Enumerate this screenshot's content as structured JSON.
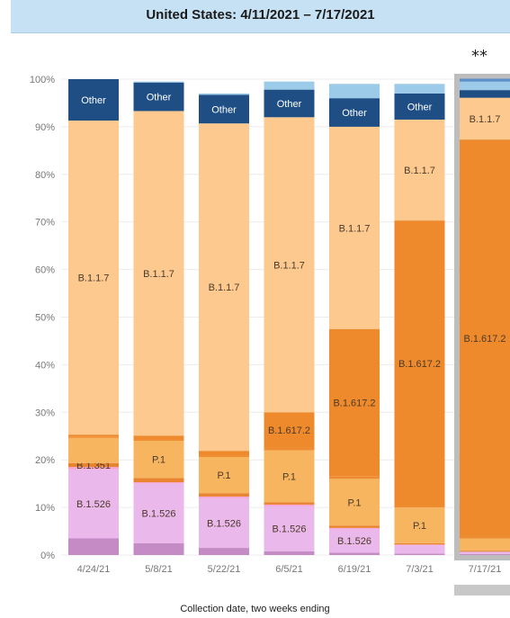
{
  "title": "United States: 4/11/2021 – 7/17/2021",
  "footnote_mark": "**",
  "chart_data": {
    "type": "bar",
    "stacked": true,
    "xlabel": "Collection date, two weeks ending",
    "ylabel": "",
    "ylim": [
      0,
      100
    ],
    "yticks": [
      "0%",
      "10%",
      "20%",
      "30%",
      "40%",
      "50%",
      "60%",
      "70%",
      "80%",
      "90%",
      "100%"
    ],
    "grid": true,
    "categories": [
      "4/24/21",
      "5/8/21",
      "5/22/21",
      "6/5/21",
      "6/19/21",
      "7/3/21",
      "7/17/21"
    ],
    "nowcast_category": "7/17/21",
    "segment_label_text": [
      "B.1.526",
      "B.1.351",
      "P.1",
      "B.1.617.2",
      "B.1.1.7",
      "Other"
    ],
    "series": [
      {
        "name": "",
        "color": "#c48bc4",
        "values": [
          3.5,
          2.5,
          1.5,
          0.8,
          0.5,
          0.3,
          0.2
        ],
        "labels": [
          "",
          "",
          "",
          "",
          "",
          "",
          ""
        ]
      },
      {
        "name": "",
        "color": "#eab8ea",
        "values": [
          14.5,
          12.5,
          10.5,
          9.5,
          5.0,
          1.8,
          0.5
        ],
        "labels": [
          "B.1.526",
          "B.1.526",
          "B.1.526",
          "B.1.526",
          "B.1.526",
          "",
          ""
        ]
      },
      {
        "name": "",
        "color": "#f4a5d3",
        "values": [
          0.5,
          0.3,
          0.3,
          0.3,
          0.2,
          0.1,
          0.0
        ],
        "labels": [
          "",
          "",
          "",
          "",
          "",
          "",
          ""
        ]
      },
      {
        "name": "",
        "color": "#e8832f",
        "values": [
          0.8,
          0.9,
          0.7,
          0.5,
          0.5,
          0.3,
          0.2
        ],
        "labels": [
          "B.1.351",
          "",
          "",
          "",
          "",
          "",
          ""
        ]
      },
      {
        "name": "",
        "color": "#f7b55f",
        "values": [
          5.3,
          7.8,
          7.6,
          10.9,
          9.8,
          7.5,
          2.6
        ],
        "labels": [
          "",
          "P.1",
          "P.1",
          "P.1",
          "P.1",
          "P.1",
          ""
        ]
      },
      {
        "name": "",
        "color": "#ef8c32",
        "values": [
          0.2,
          0.3,
          0.3,
          0.5,
          0.5,
          0.3,
          0.3
        ],
        "labels": [
          "",
          "",
          "",
          "",
          "",
          "",
          ""
        ]
      },
      {
        "name": "",
        "color": "#ee8a2b",
        "values": [
          0.5,
          0.8,
          1.0,
          7.5,
          31.0,
          60.0,
          83.5
        ],
        "labels": [
          "",
          "",
          "",
          "B.1.617.2",
          "B.1.617.2",
          "B.1.617.2",
          "B.1.617.2"
        ]
      },
      {
        "name": "",
        "color": "#fdc98f",
        "values": [
          66.0,
          68.2,
          68.8,
          62.0,
          42.5,
          21.2,
          8.8
        ],
        "labels": [
          "B.1.1.7",
          "B.1.1.7",
          "B.1.1.7",
          "B.1.1.7",
          "B.1.1.7",
          "B.1.1.7",
          "B.1.1.7"
        ]
      },
      {
        "name": "",
        "color": "#1f4e85",
        "values": [
          8.7,
          6.0,
          6.0,
          5.8,
          6.0,
          5.5,
          1.6
        ],
        "labels": [
          "Other",
          "Other",
          "Other",
          "Other",
          "Other",
          "Other",
          ""
        ]
      },
      {
        "name": "",
        "color": "#9ccae9",
        "values": [
          0.0,
          0.2,
          0.3,
          1.7,
          3.0,
          2.0,
          1.8
        ],
        "labels": [
          "",
          "",
          "",
          "",
          "",
          "",
          ""
        ]
      },
      {
        "name": "",
        "color": "#5b8fc9",
        "values": [
          0.0,
          0.0,
          0.0,
          0.0,
          0.0,
          0.0,
          0.6
        ],
        "labels": [
          "",
          "",
          "",
          "",
          "",
          "",
          ""
        ]
      }
    ]
  }
}
